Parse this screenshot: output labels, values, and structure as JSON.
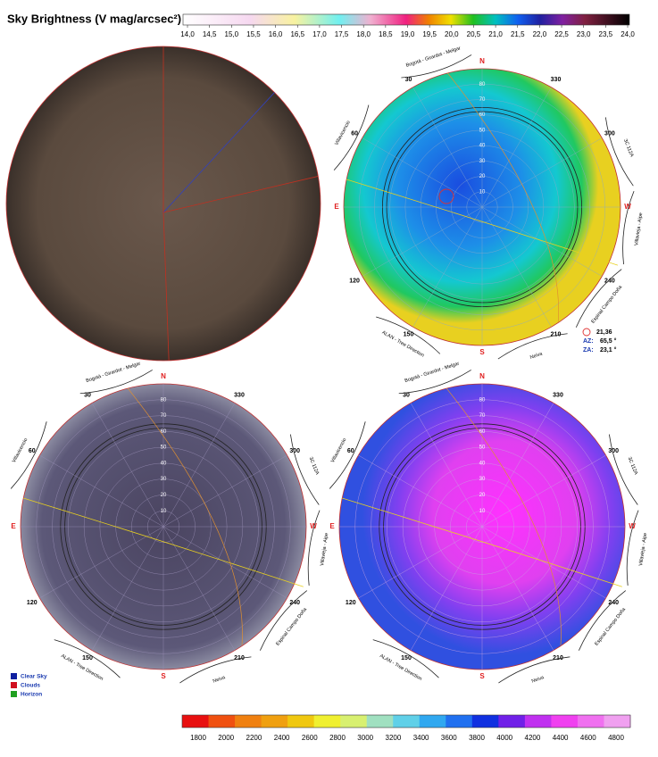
{
  "header": {
    "title": "Sky Brightness (V mag/arcsec²)"
  },
  "brightness_scale": {
    "ticks": [
      "14,0",
      "14,5",
      "15,0",
      "15,5",
      "16,0",
      "16,5",
      "17,0",
      "17,5",
      "18,0",
      "18,5",
      "19,0",
      "19,5",
      "20,0",
      "20,5",
      "21,0",
      "21,5",
      "22,0",
      "22,5",
      "23,0",
      "23,5",
      "24,0"
    ]
  },
  "sky_grid": {
    "cardinals": [
      {
        "label": "N",
        "azimuth": 0
      },
      {
        "label": "E",
        "azimuth": 90
      },
      {
        "label": "S",
        "azimuth": 180
      },
      {
        "label": "W",
        "azimuth": 270
      }
    ],
    "azimuths": [
      30,
      60,
      120,
      150,
      210,
      240,
      300,
      330
    ],
    "zenith_angles": [
      10,
      20,
      30,
      40,
      50,
      60,
      70,
      80
    ],
    "landmarks": [
      {
        "label": "Bogotá - Girardot - Melgar",
        "azimuth": 18
      },
      {
        "label": "Villavicencio",
        "azimuth": 62
      },
      {
        "label": "ALAN - Tree Direction",
        "azimuth": 150
      },
      {
        "label": "Neiva",
        "azimuth": 200
      },
      {
        "label": "Espinal Campo Doña",
        "azimuth": 232
      },
      {
        "label": "Villavieja - Aipe",
        "azimuth": 262
      },
      {
        "label": "3C 112A",
        "azimuth": 292
      }
    ]
  },
  "readout": {
    "value": "21,36",
    "az_label": "AZ:",
    "az_value": "65,5 °",
    "za_label": "ZA:",
    "za_value": "23,1 °"
  },
  "legend": [
    "Clear Sky",
    "Clouds",
    "Horizon"
  ],
  "temperature_scale": {
    "ticks": [
      1800,
      2000,
      2200,
      2400,
      2600,
      2800,
      3000,
      3200,
      3400,
      3600,
      3800,
      4000,
      4200,
      4400,
      4600,
      4800
    ]
  }
}
